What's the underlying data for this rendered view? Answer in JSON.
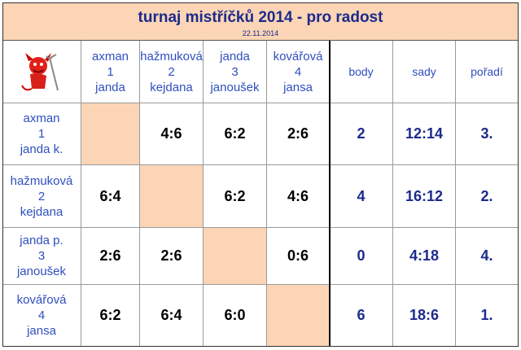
{
  "header": {
    "title": "turnaj mistříčků 2014 - pro radost",
    "date": "22.11.2014"
  },
  "columns": [
    {
      "name": "axman",
      "number": 1,
      "partner": "janda"
    },
    {
      "name": "hažmuková",
      "number": 2,
      "partner": "kejdana"
    },
    {
      "name": "janda",
      "number": 3,
      "partner": "janoušek"
    },
    {
      "name": "kovářová",
      "number": 4,
      "partner": "jansa"
    }
  ],
  "summary_headers": [
    "body",
    "sady",
    "pořadí"
  ],
  "rows": [
    {
      "name": "axman",
      "number": 1,
      "partner": "janda k.",
      "scores": [
        null,
        "4:6",
        "6:2",
        "2:6"
      ],
      "body": 2,
      "sady": "12:14",
      "poradi": "3."
    },
    {
      "name": "hažmuková",
      "number": 2,
      "partner": "kejdana",
      "scores": [
        "6:4",
        null,
        "6:2",
        "4:6"
      ],
      "body": 4,
      "sady": "16:12",
      "poradi": "2."
    },
    {
      "name": "janda p.",
      "number": 3,
      "partner": "janoušek",
      "scores": [
        "2:6",
        "2:6",
        null,
        "0:6"
      ],
      "body": 0,
      "sady": "4:18",
      "poradi": "4."
    },
    {
      "name": "kovářová",
      "number": 4,
      "partner": "jansa",
      "scores": [
        "6:2",
        "6:4",
        "6:0",
        null
      ],
      "body": 6,
      "sady": "18:6",
      "poradi": "1."
    }
  ]
}
